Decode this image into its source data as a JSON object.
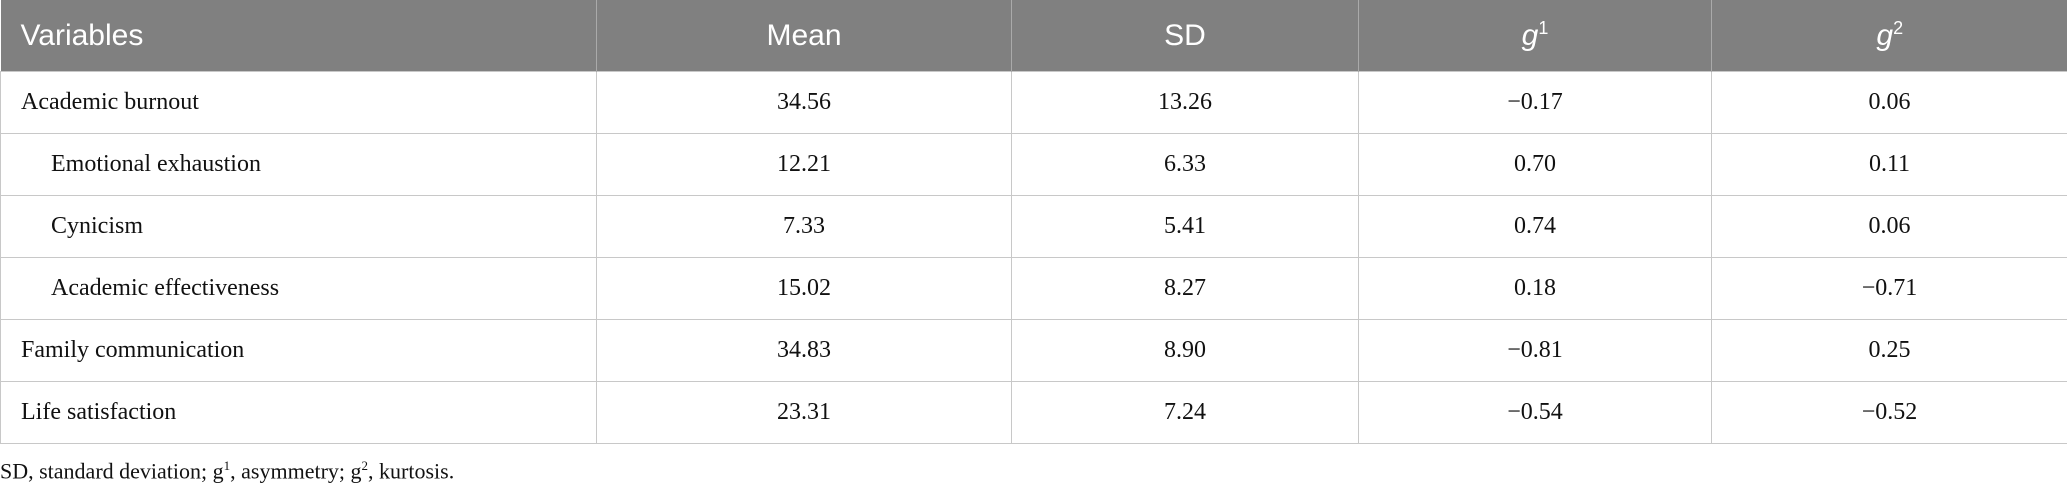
{
  "table": {
    "header": [
      "Variables",
      "Mean",
      "SD",
      {
        "base": "g",
        "sup": "1"
      },
      {
        "base": "g",
        "sup": "2"
      }
    ],
    "rows": [
      [
        "Academic burnout",
        "34.56",
        "13.26",
        "−0.17",
        "0.06"
      ],
      [
        "Emotional exhaustion",
        "12.21",
        "6.33",
        "0.70",
        "0.11"
      ],
      [
        "Cynicism",
        "7.33",
        "5.41",
        "0.74",
        "0.06"
      ],
      [
        "Academic effectiveness",
        "15.02",
        "8.27",
        "0.18",
        "−0.71"
      ],
      [
        "Family communication",
        "34.83",
        "8.90",
        "−0.81",
        "0.25"
      ],
      [
        "Life satisfaction",
        "23.31",
        "7.24",
        "−0.54",
        "−0.52"
      ]
    ]
  },
  "footnote": [
    "SD, standard deviation; g",
    "1",
    ", asymmetry; g",
    "2",
    ", kurtosis."
  ]
}
